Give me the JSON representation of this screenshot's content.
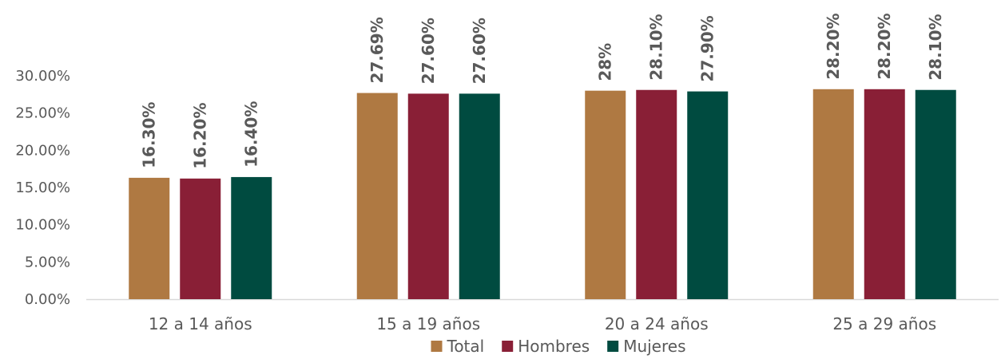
{
  "chart_data": {
    "type": "bar",
    "title": "",
    "xlabel": "",
    "ylabel": "",
    "categories": [
      "12 a 14 años",
      "15 a 19 años",
      "20 a 24 años",
      "25 a 29 años"
    ],
    "series": [
      {
        "name": "Total",
        "color": "#AF7942",
        "values": [
          16.3,
          27.69,
          28.0,
          28.2
        ],
        "labels": [
          "16.30%",
          "27.69%",
          "28%",
          "28.20%"
        ]
      },
      {
        "name": "Hombres",
        "color": "#891F36",
        "values": [
          16.2,
          27.6,
          28.1,
          28.2
        ],
        "labels": [
          "16.20%",
          "27.60%",
          "28.10%",
          "28.20%"
        ]
      },
      {
        "name": "Mujeres",
        "color": "#004B40",
        "values": [
          16.4,
          27.6,
          27.9,
          28.1
        ],
        "labels": [
          "16.40%",
          "27.60%",
          "27.90%",
          "28.10%"
        ]
      }
    ],
    "ylim": [
      0,
      30
    ],
    "yticks": [
      "0.00%",
      "5.00%",
      "10.00%",
      "15.00%",
      "20.00%",
      "25.00%",
      "30.00%"
    ],
    "grid": false,
    "legend": "bottom",
    "axis_color": "#D9D9D9"
  }
}
